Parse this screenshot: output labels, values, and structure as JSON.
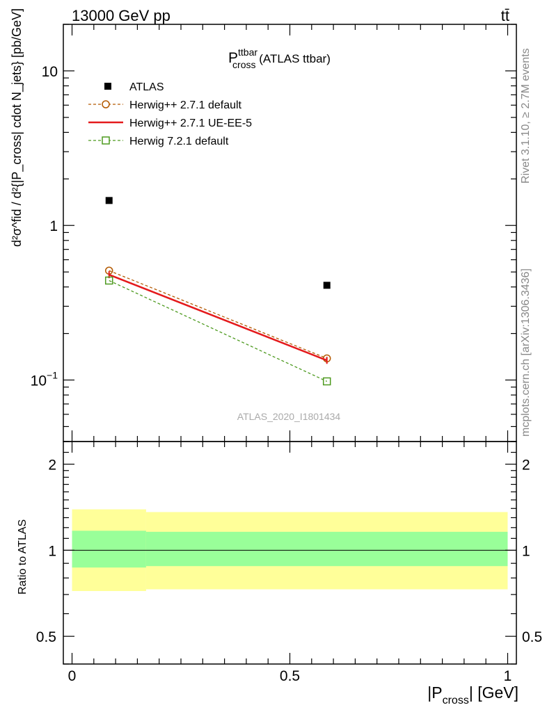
{
  "header": {
    "left": "13000 GeV pp",
    "right": "tt̄"
  },
  "side_notes": {
    "rivet": "Rivet 3.1.10, ≥ 2.7M events",
    "mcplots": "mcplots.cern.ch [arXiv:1306.3436]"
  },
  "watermark": "ATLAS_2020_I1801434",
  "plot_title": {
    "main": "P",
    "sup": "ttbar",
    "sub": "cross",
    "suffix": " (ATLAS ttbar)"
  },
  "ylabel": {
    "text": "d²σ^fid / d²{|P_cross| cdot N_jets} [pb/GeV]"
  },
  "xlabel": {
    "pre": "|P",
    "sub": "cross",
    "post": "| [GeV]"
  },
  "ratio_ylabel": "Ratio to ATLAS",
  "colors": {
    "data": "#000000",
    "default_271": "#b35900",
    "ueee5": "#e41a1c",
    "herwig721": "#4d9a1f",
    "band_inner": "#99ff99",
    "band_outer": "#ffff99"
  },
  "chart_data": [
    {
      "type": "line",
      "panel": "main",
      "y_scale": "log",
      "xlim": [
        -0.02,
        1.02
      ],
      "ylim": [
        0.04,
        20
      ],
      "x_ticks": [],
      "y_tick_labels": [
        {
          "value": 10,
          "label": "10"
        },
        {
          "value": 1,
          "label": "1"
        },
        {
          "value": 0.1,
          "label": "10",
          "sup": "−1"
        }
      ],
      "series": [
        {
          "name": "ATLAS",
          "style": "data",
          "x": [
            0.085,
            0.585
          ],
          "y": [
            1.45,
            0.41
          ]
        },
        {
          "name": "Herwig++ 2.7.1 default",
          "style": "circle-dashed",
          "x": [
            0.085,
            0.585
          ],
          "y": [
            0.51,
            0.138
          ]
        },
        {
          "name": "Herwig++ 2.7.1 UE-EE-5",
          "style": "solid",
          "x": [
            0.085,
            0.585
          ],
          "y": [
            0.48,
            0.134
          ]
        },
        {
          "name": "Herwig 7.2.1 default",
          "style": "square-dashed",
          "x": [
            0.085,
            0.585
          ],
          "y": [
            0.44,
            0.098
          ]
        }
      ]
    },
    {
      "type": "area",
      "panel": "ratio",
      "xlim": [
        -0.02,
        1.02
      ],
      "ylim": [
        0.4,
        2.4
      ],
      "x_tick_labels": [
        {
          "value": 0,
          "label": "0"
        },
        {
          "value": 0.5,
          "label": "0.5"
        },
        {
          "value": 1,
          "label": "1"
        }
      ],
      "y_tick_labels": [
        {
          "value": 2,
          "label": "2"
        },
        {
          "value": 1,
          "label": "1"
        },
        {
          "value": 0.5,
          "label": "0.5"
        }
      ],
      "bands": [
        {
          "x0": 0.0,
          "x1": 0.17,
          "inner": [
            0.87,
            1.17
          ],
          "outer": [
            0.72,
            1.39
          ]
        },
        {
          "x0": 0.17,
          "x1": 1.0,
          "inner": [
            0.88,
            1.16
          ],
          "outer": [
            0.73,
            1.36
          ]
        }
      ],
      "reference": 1
    }
  ]
}
